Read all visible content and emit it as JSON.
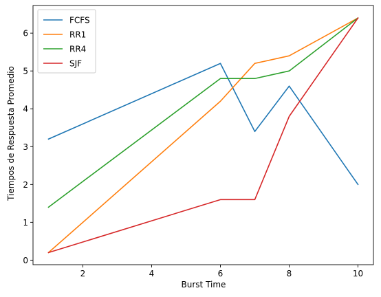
{
  "chart_data": {
    "type": "line",
    "title": "",
    "xlabel": "Burst Time",
    "ylabel": "Tiempos de Respuesta Promedio",
    "x": [
      1,
      6,
      7,
      8,
      10
    ],
    "xlim": [
      0.55,
      10.45
    ],
    "ylim": [
      -0.12,
      6.73
    ],
    "xticks": [
      2,
      4,
      6,
      8,
      10
    ],
    "yticks": [
      0,
      1,
      2,
      3,
      4,
      5,
      6
    ],
    "grid": false,
    "legend_position": "top-left",
    "series": [
      {
        "name": "FCFS",
        "color": "#1f77b4",
        "values": [
          3.2,
          5.2,
          3.4,
          4.6,
          2.0
        ]
      },
      {
        "name": "RR1",
        "color": "#ff7f0e",
        "values": [
          0.2,
          4.2,
          5.2,
          5.4,
          6.4
        ]
      },
      {
        "name": "RR4",
        "color": "#2ca02c",
        "values": [
          1.4,
          4.8,
          4.8,
          5.0,
          6.4
        ]
      },
      {
        "name": "SJF",
        "color": "#d62728",
        "values": [
          0.2,
          1.6,
          1.6,
          3.8,
          6.4
        ]
      }
    ]
  }
}
